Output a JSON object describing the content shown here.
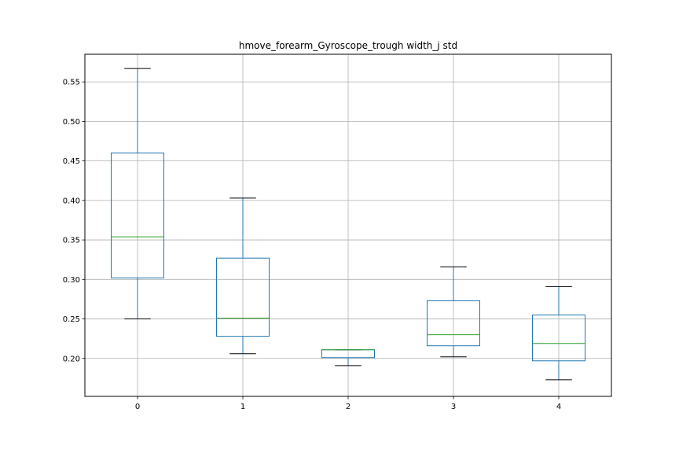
{
  "chart_data": {
    "type": "box",
    "title": "hmove_forearm_Gyroscope_trough width_j std",
    "xlabel": "",
    "ylabel": "",
    "categories": [
      "0",
      "1",
      "2",
      "3",
      "4"
    ],
    "boxes": [
      {
        "category": "0",
        "whisker_low": 0.25,
        "q1": 0.302,
        "median": 0.354,
        "q3": 0.46,
        "whisker_high": 0.567
      },
      {
        "category": "1",
        "whisker_low": 0.206,
        "q1": 0.228,
        "median": 0.251,
        "q3": 0.327,
        "whisker_high": 0.403
      },
      {
        "category": "2",
        "whisker_low": 0.191,
        "q1": 0.201,
        "median": 0.211,
        "q3": 0.211,
        "whisker_high": 0.211
      },
      {
        "category": "3",
        "whisker_low": 0.202,
        "q1": 0.216,
        "median": 0.23,
        "q3": 0.273,
        "whisker_high": 0.316
      },
      {
        "category": "4",
        "whisker_low": 0.173,
        "q1": 0.197,
        "median": 0.219,
        "q3": 0.255,
        "whisker_high": 0.291
      }
    ],
    "ylim": [
      0.152,
      0.585
    ],
    "yticks": [
      0.2,
      0.25,
      0.3,
      0.35,
      0.4,
      0.45,
      0.5,
      0.55
    ],
    "ytick_labels": [
      "0.20",
      "0.25",
      "0.30",
      "0.35",
      "0.40",
      "0.45",
      "0.50",
      "0.55"
    ],
    "grid": true,
    "colors": {
      "box": "#1f77b4",
      "median": "#2ca02c",
      "cap": "#000000",
      "grid": "#b0b0b0"
    }
  }
}
